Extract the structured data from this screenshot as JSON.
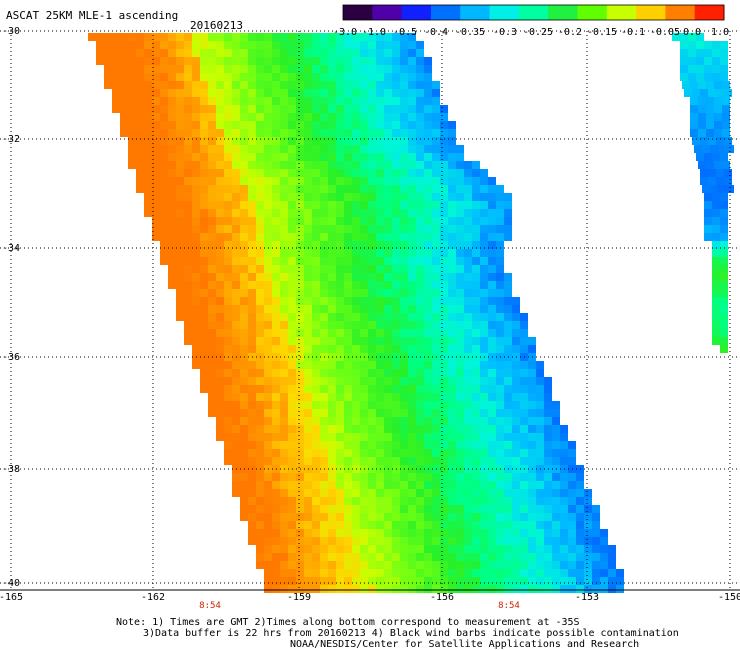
{
  "header": {
    "title": "ASCAT 25KM MLE-1 ascending",
    "date": "20160213"
  },
  "colorbar": {
    "labels": [
      "-3.0",
      "-1.0",
      "-0.5",
      "-0.4",
      "-0.35",
      "-0.3",
      "-0.25",
      "-0.2",
      "-0.15",
      "-0.1",
      "-0.05",
      "0.0",
      "1.0"
    ],
    "colors": [
      "#2a0040",
      "#5000a8",
      "#1020ff",
      "#0070ff",
      "#00b8ff",
      "#00f0e8",
      "#00ffa0",
      "#20f040",
      "#60ff00",
      "#c8ff00",
      "#ffd000",
      "#ff8000",
      "#ff2000"
    ]
  },
  "axes": {
    "lat_labels": [
      "-30",
      "-32",
      "-34",
      "-36",
      "-38",
      "-40"
    ],
    "lon_labels": [
      "-165",
      "-162",
      "-159",
      "-156",
      "-153",
      "-150"
    ]
  },
  "time_markers": [
    "8:54",
    "8:54"
  ],
  "notes": [
    "Note: 1) Times are GMT 2)Times along bottom correspond to measurement at -35S",
    "3)Data buffer is 22 hrs from 20160213 4) Black wind barbs indicate possible contamination",
    "NOAA/NESDIS/Center for Satellite Applications and Research"
  ]
}
